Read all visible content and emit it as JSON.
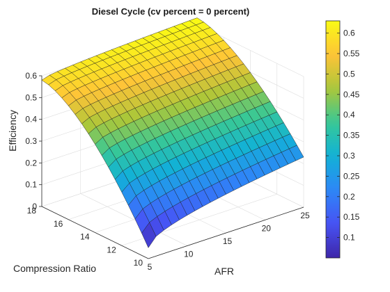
{
  "chart_data": {
    "type": "surface",
    "title": "Diesel Cycle (cv percent = 0 percent)",
    "xlabel": "AFR",
    "ylabel": "Compression Ratio",
    "zlabel": "Efficiency",
    "x_range": [
      5,
      25
    ],
    "y_range": [
      10,
      18
    ],
    "z_range": [
      0,
      0.6
    ],
    "x_ticks": [
      "5",
      "10",
      "15",
      "20",
      "25"
    ],
    "y_ticks": [
      "10",
      "12",
      "14",
      "16",
      "18"
    ],
    "z_ticks": [
      "0",
      "0.1",
      "0.2",
      "0.3",
      "0.4",
      "0.5",
      "0.6"
    ],
    "grid": true,
    "colormap": "parula",
    "colorbar": {
      "range": [
        0.05,
        0.63
      ],
      "ticks": [
        "0.1",
        "0.15",
        "0.2",
        "0.25",
        "0.3",
        "0.35",
        "0.4",
        "0.45",
        "0.5",
        "0.55",
        "0.6"
      ]
    },
    "surface": {
      "x_grid": [
        5,
        6,
        7,
        8,
        9,
        10,
        11,
        12,
        13,
        14,
        15,
        16,
        17,
        18,
        19,
        20,
        21,
        22,
        23,
        24,
        25
      ],
      "y_grid": [
        10,
        10.5,
        11,
        11.5,
        12,
        12.5,
        13,
        13.5,
        14,
        14.5,
        15,
        15.5,
        16,
        16.5,
        17,
        17.5,
        18
      ],
      "z_at_corners": {
        "x5_y10": 0.05,
        "x25_y10": 0.23,
        "x5_y18": 0.58,
        "x25_y18": 0.63
      }
    }
  }
}
